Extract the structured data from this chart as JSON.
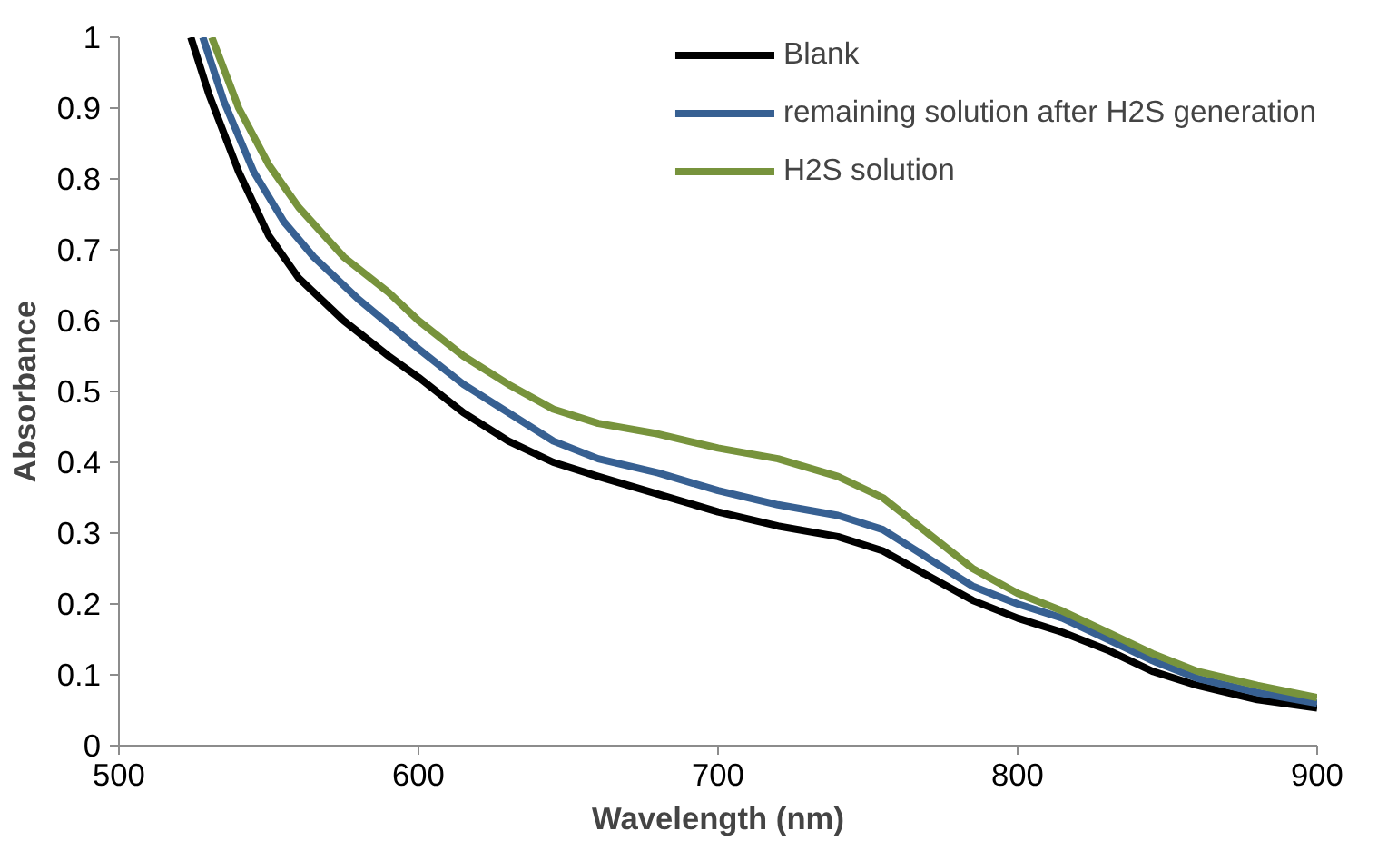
{
  "chart_data": {
    "type": "line",
    "xlabel": "Wavelength (nm)",
    "ylabel": "Absorbance",
    "xlim": [
      500,
      900
    ],
    "xticks": [
      500,
      600,
      700,
      800,
      900
    ],
    "ylim": [
      0,
      1
    ],
    "yticks": [
      0,
      0.1,
      0.2,
      0.3,
      0.4,
      0.5,
      0.6,
      0.7,
      0.8,
      0.9,
      1
    ],
    "grid": false,
    "legend": "top right",
    "marker": "none",
    "line_style": "solid",
    "series": [
      {
        "name": "Blank",
        "color": "#000000",
        "x": [
          524,
          530,
          540,
          550,
          560,
          575,
          590,
          600,
          615,
          630,
          645,
          660,
          680,
          700,
          720,
          740,
          755,
          770,
          785,
          800,
          815,
          830,
          845,
          860,
          880,
          900
        ],
        "values": [
          1.0,
          0.92,
          0.81,
          0.72,
          0.66,
          0.6,
          0.55,
          0.52,
          0.47,
          0.43,
          0.4,
          0.38,
          0.355,
          0.33,
          0.31,
          0.295,
          0.275,
          0.24,
          0.205,
          0.18,
          0.16,
          0.135,
          0.105,
          0.085,
          0.065,
          0.053
        ]
      },
      {
        "name": "remaining solution after H2S generation",
        "color": "#376092",
        "x": [
          528,
          535,
          545,
          555,
          565,
          580,
          600,
          615,
          630,
          645,
          660,
          680,
          700,
          720,
          740,
          755,
          770,
          785,
          800,
          815,
          830,
          845,
          860,
          880,
          900
        ],
        "values": [
          1.0,
          0.91,
          0.81,
          0.74,
          0.69,
          0.63,
          0.56,
          0.51,
          0.47,
          0.43,
          0.405,
          0.385,
          0.36,
          0.34,
          0.325,
          0.305,
          0.265,
          0.225,
          0.2,
          0.18,
          0.15,
          0.12,
          0.095,
          0.075,
          0.06
        ]
      },
      {
        "name": "H2S solution",
        "color": "#77933c",
        "x": [
          531,
          540,
          550,
          560,
          575,
          590,
          600,
          615,
          630,
          645,
          660,
          680,
          700,
          720,
          740,
          755,
          770,
          785,
          800,
          815,
          830,
          845,
          860,
          880,
          900
        ],
        "values": [
          1.0,
          0.9,
          0.82,
          0.76,
          0.69,
          0.64,
          0.6,
          0.55,
          0.51,
          0.475,
          0.455,
          0.44,
          0.42,
          0.405,
          0.38,
          0.35,
          0.3,
          0.25,
          0.215,
          0.19,
          0.16,
          0.13,
          0.105,
          0.085,
          0.068
        ]
      }
    ]
  }
}
